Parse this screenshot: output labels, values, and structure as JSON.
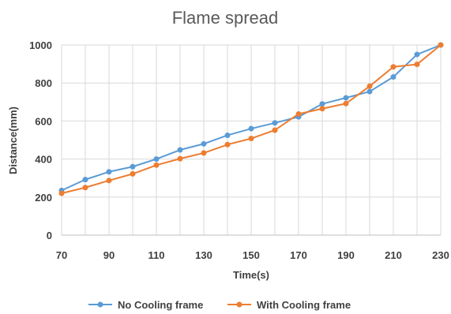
{
  "chart_data": {
    "type": "line",
    "title": "Flame spread",
    "xlabel": "Time(s)",
    "ylabel": "Distance(mm)",
    "xlim": [
      70,
      230
    ],
    "ylim": [
      0,
      1000
    ],
    "xticks": [
      70,
      90,
      110,
      130,
      150,
      170,
      190,
      210,
      230
    ],
    "yticks": [
      0,
      200,
      400,
      600,
      800,
      1000
    ],
    "grid": true,
    "legend_position": "bottom",
    "x": [
      70,
      80,
      90,
      100,
      110,
      120,
      130,
      140,
      150,
      160,
      170,
      180,
      190,
      200,
      210,
      220,
      230
    ],
    "series": [
      {
        "name": "No Cooling frame",
        "color": "#5B9BD5",
        "values": [
          235,
          292,
          333,
          360,
          400,
          448,
          480,
          525,
          560,
          590,
          622,
          690,
          722,
          755,
          832,
          950,
          1000
        ]
      },
      {
        "name": "With Cooling frame",
        "color": "#ED7D31",
        "values": [
          220,
          250,
          287,
          322,
          368,
          402,
          432,
          476,
          508,
          552,
          637,
          665,
          692,
          783,
          885,
          898,
          1000
        ]
      }
    ]
  }
}
